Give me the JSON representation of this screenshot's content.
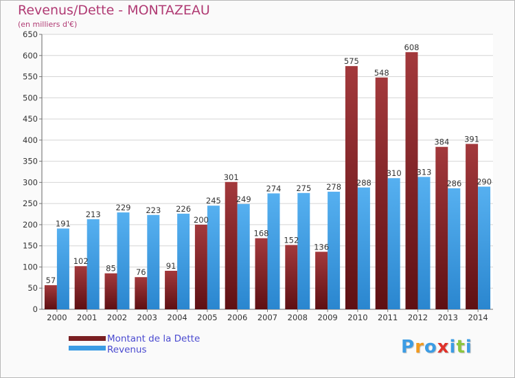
{
  "chart_data": {
    "type": "bar",
    "title": "Revenus/Dette - MONTAZEAU",
    "subtitle": "(en milliers d'€)",
    "categories": [
      "2000",
      "2001",
      "2002",
      "2003",
      "2004",
      "2005",
      "2006",
      "2007",
      "2008",
      "2009",
      "2010",
      "2011",
      "2012",
      "2013",
      "2014"
    ],
    "series": [
      {
        "name": "Montant de la Dette",
        "color": "#7a1f22",
        "values": [
          57,
          102,
          85,
          76,
          91,
          200,
          301,
          168,
          152,
          136,
          575,
          548,
          608,
          384,
          391
        ]
      },
      {
        "name": "Revenus",
        "color": "#3c9ce4",
        "values": [
          191,
          213,
          229,
          223,
          226,
          245,
          249,
          274,
          275,
          278,
          288,
          310,
          313,
          286,
          290
        ]
      }
    ],
    "ylim": [
      0,
      650
    ],
    "yticks": [
      0,
      50,
      100,
      150,
      200,
      250,
      300,
      350,
      400,
      450,
      500,
      550,
      600,
      650
    ],
    "grid": true,
    "legend_position": "bottom-left"
  },
  "logo": {
    "letters": [
      {
        "char": "P",
        "color": "#3c9ce4"
      },
      {
        "char": "r",
        "color": "#f29a1e"
      },
      {
        "char": "o",
        "color": "#3c9ce4"
      },
      {
        "char": "x",
        "color": "#e0322a"
      },
      {
        "char": "i",
        "color": "#3c9ce4"
      },
      {
        "char": "t",
        "color": "#8cc63f"
      },
      {
        "char": "i",
        "color": "#3c9ce4"
      }
    ]
  }
}
